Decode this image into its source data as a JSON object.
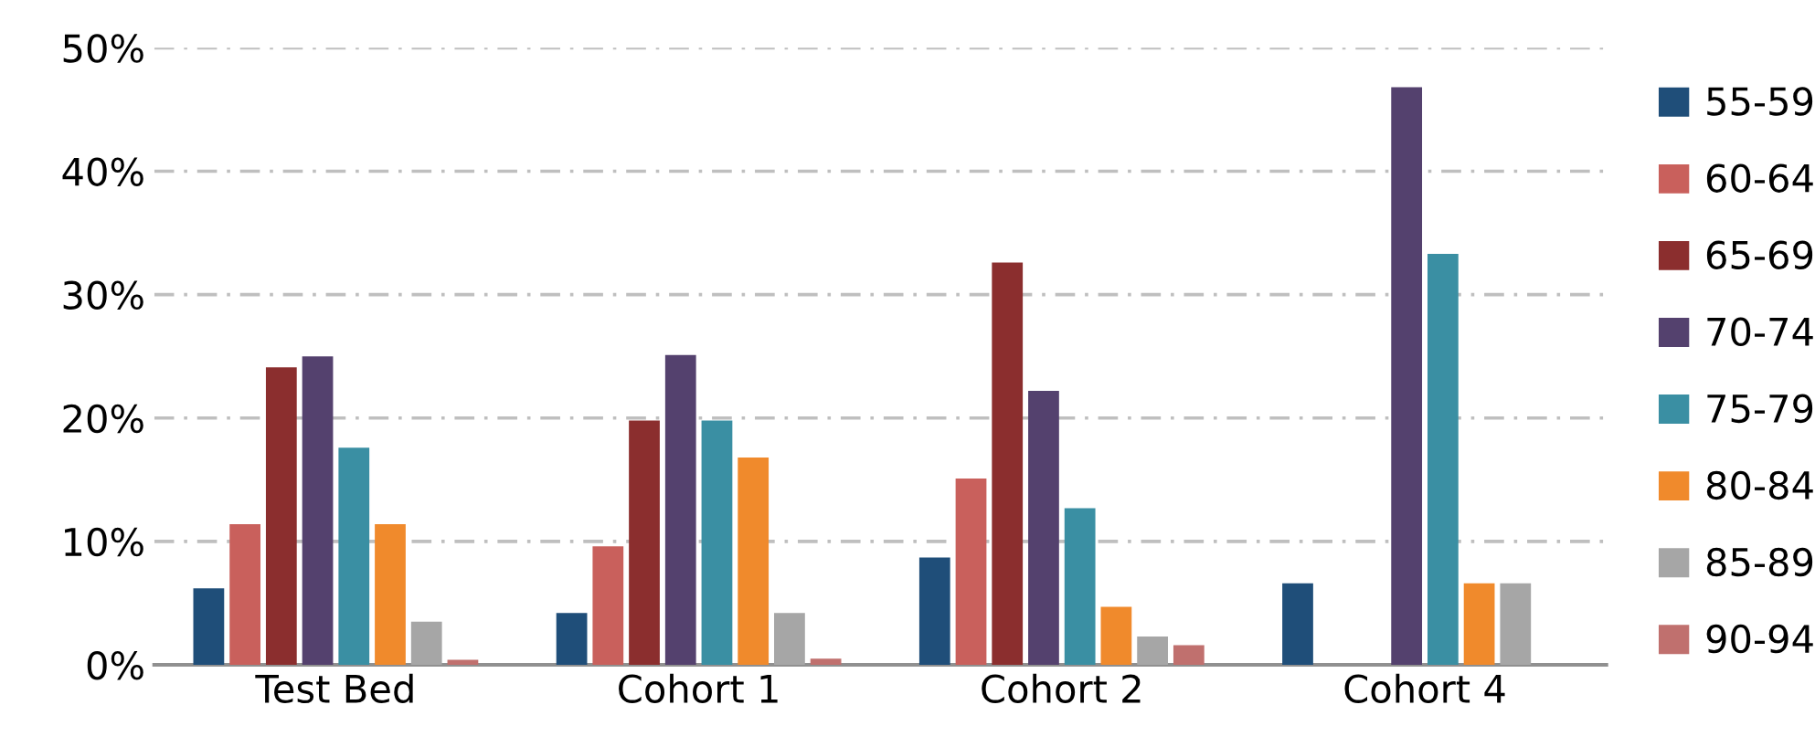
{
  "chart_data": {
    "type": "bar",
    "categories": [
      "Test Bed",
      "Cohort 1",
      "Cohort 2",
      "Cohort 4"
    ],
    "series": [
      {
        "name": "55-59",
        "color": "#1f4e79",
        "values": [
          6.2,
          4.2,
          8.7,
          6.6
        ]
      },
      {
        "name": "60-64",
        "color": "#c9605c",
        "values": [
          11.4,
          9.6,
          15.1,
          null
        ]
      },
      {
        "name": "65-69",
        "color": "#8b2e2e",
        "values": [
          24.1,
          19.8,
          32.6,
          null
        ]
      },
      {
        "name": "70-74",
        "color": "#54416e",
        "values": [
          25.0,
          25.1,
          22.2,
          46.8
        ]
      },
      {
        "name": "75-79",
        "color": "#3a8fa3",
        "values": [
          17.6,
          19.8,
          12.7,
          33.3
        ]
      },
      {
        "name": "80-84",
        "color": "#f08a2c",
        "values": [
          11.4,
          16.8,
          4.7,
          6.6
        ]
      },
      {
        "name": "85-89",
        "color": "#a6a6a6",
        "values": [
          3.5,
          4.2,
          2.3,
          6.6
        ]
      },
      {
        "name": "90-94",
        "color": "#c0706e",
        "values": [
          0.4,
          0.5,
          1.6,
          null
        ]
      }
    ],
    "ylim": [
      0,
      50
    ],
    "yticks": [
      {
        "value": 0,
        "label": "0%"
      },
      {
        "value": 10,
        "label": "10%"
      },
      {
        "value": 20,
        "label": "20%"
      },
      {
        "value": 30,
        "label": "30%"
      },
      {
        "value": 40,
        "label": "40%"
      },
      {
        "value": 50,
        "label": "50%"
      }
    ],
    "grid": "y",
    "legend": "right"
  }
}
